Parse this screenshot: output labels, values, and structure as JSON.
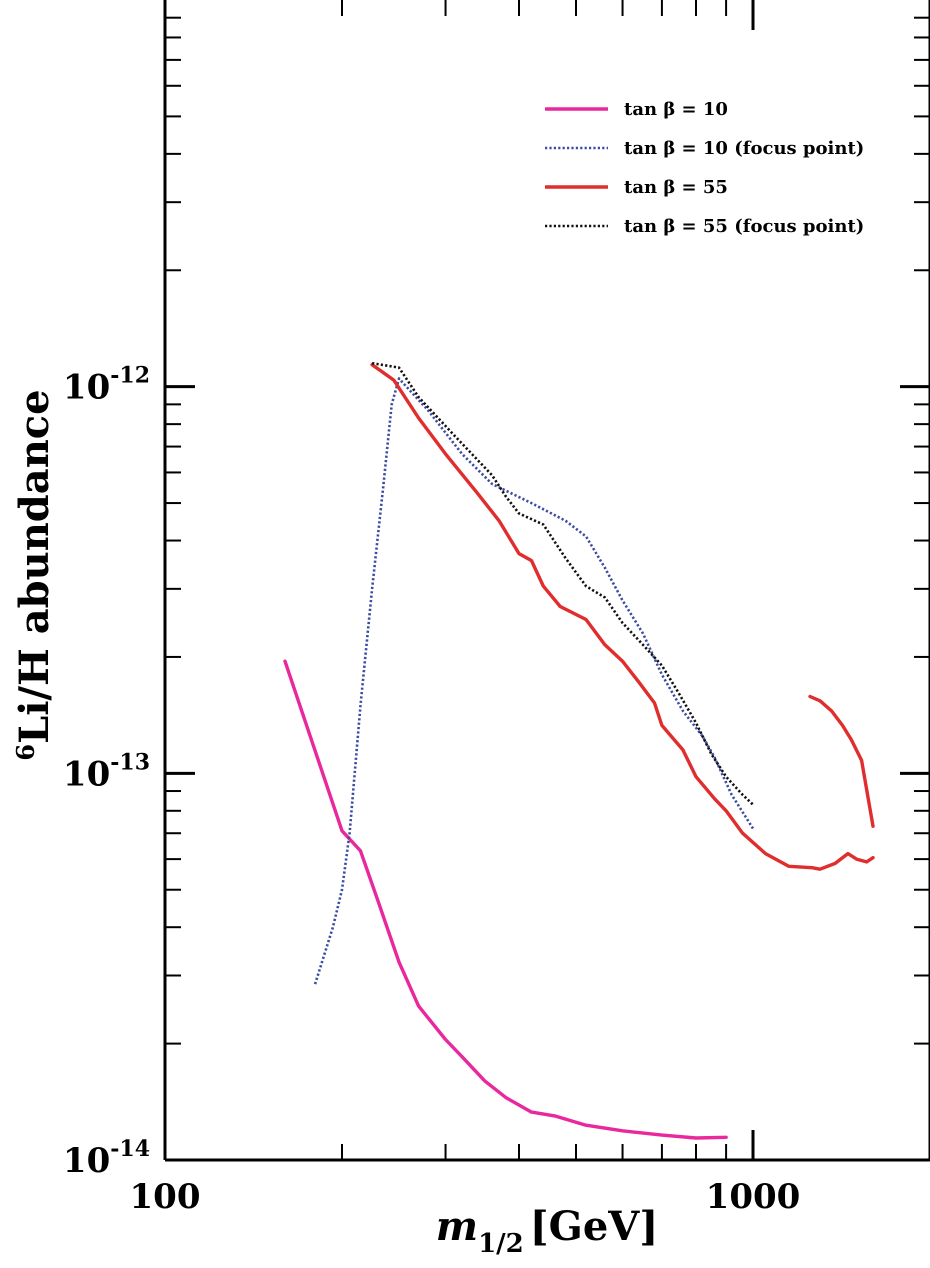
{
  "chart_data": {
    "type": "line",
    "xlabel": {
      "main": "m",
      "sub": "1/2",
      "unit": "[GeV]"
    },
    "ylabel": {
      "sup": "6",
      "main": "Li/H  abundance"
    },
    "xscale": "log",
    "yscale": "log",
    "xlim": [
      100,
      2000
    ],
    "ylim": [
      1e-14,
      1e-11
    ],
    "x_ticks": [
      {
        "value": 100,
        "label": "100"
      },
      {
        "value": 1000,
        "label": "1000"
      }
    ],
    "y_ticks": [
      {
        "value": 1e-14,
        "base": "10",
        "exp": "-14"
      },
      {
        "value": 1e-13,
        "base": "10",
        "exp": "-13"
      },
      {
        "value": 1e-12,
        "base": "10",
        "exp": "-12"
      }
    ],
    "legend_position": "top-right",
    "series": [
      {
        "name": "tan β = 10",
        "color": "#e8289c",
        "dash": "solid",
        "segments": [
          [
            [
              160,
              1.95e-13
            ],
            [
              200,
              7.1e-14
            ],
            [
              215,
              6.3e-14
            ],
            [
              230,
              4.7e-14
            ],
            [
              250,
              3.25e-14
            ],
            [
              270,
              2.5e-14
            ],
            [
              300,
              2.05e-14
            ],
            [
              320,
              1.85e-14
            ],
            [
              350,
              1.6e-14
            ],
            [
              380,
              1.45e-14
            ],
            [
              420,
              1.33e-14
            ],
            [
              460,
              1.3e-14
            ],
            [
              520,
              1.23e-14
            ],
            [
              600,
              1.19e-14
            ],
            [
              700,
              1.16e-14
            ],
            [
              800,
              1.14e-14
            ],
            [
              900,
              1.145e-14
            ]
          ]
        ]
      },
      {
        "name": "tan β = 10 (focus point)",
        "color": "#3c4ca0",
        "dash": "dotted",
        "segments": [
          [
            [
              180,
              2.85e-14
            ],
            [
              193,
              4e-14
            ],
            [
              200,
              5e-14
            ],
            [
              206,
              7e-14
            ],
            [
              215,
              1.5e-13
            ],
            [
              225,
              3e-13
            ],
            [
              235,
              5.5e-13
            ],
            [
              243,
              9e-13
            ],
            [
              250,
              1.05e-12
            ],
            [
              280,
              8.7e-13
            ],
            [
              320,
              6.7e-13
            ],
            [
              360,
              5.6e-13
            ],
            [
              420,
              5e-13
            ],
            [
              480,
              4.5e-13
            ],
            [
              520,
              4.1e-13
            ],
            [
              560,
              3.4e-13
            ],
            [
              600,
              2.8e-13
            ],
            [
              650,
              2.3e-13
            ],
            [
              700,
              1.8e-13
            ],
            [
              760,
              1.45e-13
            ],
            [
              820,
              1.25e-13
            ],
            [
              860,
              1.1e-13
            ],
            [
              920,
              8.8e-14
            ],
            [
              1000,
              7.2e-14
            ]
          ]
        ]
      },
      {
        "name": "tan β = 55",
        "color": "#e02d2d",
        "dash": "solid",
        "segments": [
          [
            [
              225,
              1.14e-12
            ],
            [
              245,
              1.04e-12
            ],
            [
              270,
              8.3e-13
            ],
            [
              300,
              6.7e-13
            ],
            [
              340,
              5.3e-13
            ],
            [
              370,
              4.5e-13
            ],
            [
              400,
              3.7e-13
            ],
            [
              420,
              3.55e-13
            ],
            [
              440,
              3.05e-13
            ],
            [
              470,
              2.7e-13
            ],
            [
              520,
              2.5e-13
            ],
            [
              560,
              2.15e-13
            ],
            [
              600,
              1.95e-13
            ],
            [
              640,
              1.72e-13
            ],
            [
              680,
              1.52e-13
            ],
            [
              700,
              1.33e-13
            ],
            [
              760,
              1.15e-13
            ],
            [
              800,
              9.8e-14
            ],
            [
              860,
              8.6e-14
            ],
            [
              900,
              8e-14
            ],
            [
              960,
              7e-14
            ],
            [
              1050,
              6.2e-14
            ],
            [
              1150,
              5.75e-14
            ],
            [
              1260,
              5.7e-14
            ],
            [
              1300,
              5.65e-14
            ],
            [
              1380,
              5.85e-14
            ],
            [
              1450,
              6.2e-14
            ],
            [
              1500,
              6e-14
            ],
            [
              1560,
              5.9e-14
            ],
            [
              1600,
              6.05e-14
            ]
          ],
          [
            [
              1250,
              1.58e-13
            ],
            [
              1300,
              1.54e-13
            ],
            [
              1360,
              1.45e-13
            ],
            [
              1420,
              1.33e-13
            ],
            [
              1470,
              1.22e-13
            ],
            [
              1530,
              1.08e-13
            ],
            [
              1600,
              7.3e-14
            ]
          ]
        ]
      },
      {
        "name": "tan β = 55 (focus point)",
        "color": "#111111",
        "dash": "dotted",
        "segments": [
          [
            [
              225,
              1.15e-12
            ],
            [
              250,
              1.12e-12
            ],
            [
              270,
              9.4e-13
            ],
            [
              310,
              7.5e-13
            ],
            [
              360,
              5.9e-13
            ],
            [
              380,
              5.2e-13
            ],
            [
              400,
              4.7e-13
            ],
            [
              440,
              4.4e-13
            ],
            [
              480,
              3.6e-13
            ],
            [
              520,
              3.05e-13
            ],
            [
              560,
              2.85e-13
            ],
            [
              600,
              2.45e-13
            ],
            [
              650,
              2.15e-13
            ],
            [
              700,
              1.9e-13
            ],
            [
              750,
              1.6e-13
            ],
            [
              800,
              1.35e-13
            ],
            [
              850,
              1.12e-13
            ],
            [
              900,
              9.8e-14
            ],
            [
              960,
              8.8e-14
            ],
            [
              1000,
              8.3e-14
            ]
          ]
        ]
      }
    ]
  }
}
